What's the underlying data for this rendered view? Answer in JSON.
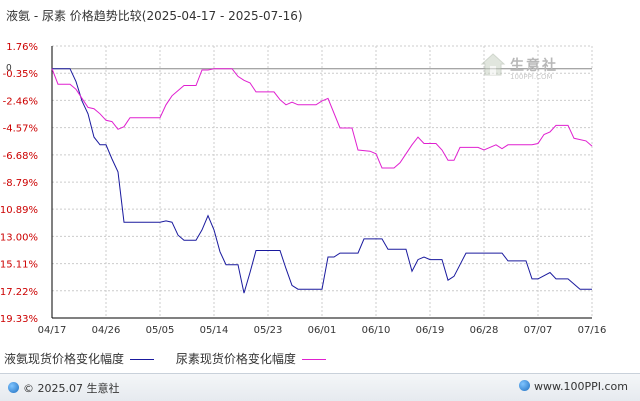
{
  "title": "液氨 - 尿素  价格趋势比较(2025-04-17 - 2025-07-16)",
  "watermark": {
    "name": "生意社",
    "url": "100PPI.COM"
  },
  "footer": {
    "copyright": "© 2025.07 生意社",
    "url": "www.100PPI.com"
  },
  "colors": {
    "series1": "#1a1a9e",
    "series2": "#e020d0",
    "axis": "#000000",
    "grid": "#cccccc",
    "ytick": "#cc0000"
  },
  "chart_data": {
    "type": "line",
    "title": "液氨 - 尿素  价格趋势比较(2025-04-17 - 2025-07-16)",
    "ylim": [
      -19.33,
      1.76
    ],
    "yticks": [
      "1.76%",
      "-0.35%",
      "-2.46%",
      "-4.57%",
      "-6.68%",
      "-8.79%",
      "-10.89%",
      "-13.00%",
      "-15.11%",
      "-17.22%",
      "-19.33%"
    ],
    "ytick_values": [
      1.76,
      -0.35,
      -2.46,
      -4.57,
      -6.68,
      -8.79,
      -10.89,
      -13.0,
      -15.11,
      -17.22,
      -19.33
    ],
    "zero_label": "0",
    "xlim": [
      0,
      90
    ],
    "xticks": [
      {
        "label": "04/17",
        "x": 0
      },
      {
        "label": "04/26",
        "x": 9
      },
      {
        "label": "05/05",
        "x": 18
      },
      {
        "label": "05/14",
        "x": 27
      },
      {
        "label": "05/23",
        "x": 36
      },
      {
        "label": "06/01",
        "x": 45
      },
      {
        "label": "06/10",
        "x": 54
      },
      {
        "label": "06/19",
        "x": 63
      },
      {
        "label": "06/28",
        "x": 72
      },
      {
        "label": "07/07",
        "x": 81
      },
      {
        "label": "07/16",
        "x": 90
      }
    ],
    "grid": true,
    "legend_position": "bottom",
    "series": [
      {
        "name": "液氨现货价格变化幅度",
        "points": [
          [
            0,
            0
          ],
          [
            3,
            0
          ],
          [
            4,
            -1
          ],
          [
            5,
            -2.5
          ],
          [
            6,
            -3.5
          ],
          [
            7,
            -5.3
          ],
          [
            8,
            -5.9
          ],
          [
            9,
            -5.9
          ],
          [
            10,
            -7
          ],
          [
            11,
            -8
          ],
          [
            12,
            -11.9
          ],
          [
            13,
            -11.9
          ],
          [
            18,
            -11.9
          ],
          [
            19,
            -11.8
          ],
          [
            20,
            -11.9
          ],
          [
            21,
            -12.9
          ],
          [
            22,
            -13.3
          ],
          [
            24,
            -13.3
          ],
          [
            25,
            -12.5
          ],
          [
            26,
            -11.4
          ],
          [
            27,
            -12.5
          ],
          [
            28,
            -14.2
          ],
          [
            29,
            -15.2
          ],
          [
            31,
            -15.2
          ],
          [
            32,
            -17.4
          ],
          [
            33,
            -15.8
          ],
          [
            34,
            -14.1
          ],
          [
            38,
            -14.1
          ],
          [
            39,
            -15.5
          ],
          [
            40,
            -16.8
          ],
          [
            41,
            -17.1
          ],
          [
            45,
            -17.1
          ],
          [
            46,
            -14.6
          ],
          [
            47,
            -14.6
          ],
          [
            48,
            -14.3
          ],
          [
            51,
            -14.3
          ],
          [
            52,
            -13.2
          ],
          [
            55,
            -13.2
          ],
          [
            56,
            -14
          ],
          [
            59,
            -14
          ],
          [
            60,
            -15.7
          ],
          [
            61,
            -14.8
          ],
          [
            62,
            -14.6
          ],
          [
            63,
            -14.8
          ],
          [
            65,
            -14.8
          ],
          [
            66,
            -16.4
          ],
          [
            67,
            -16.1
          ],
          [
            68,
            -15.2
          ],
          [
            69,
            -14.3
          ],
          [
            75,
            -14.3
          ],
          [
            76,
            -14.9
          ],
          [
            79,
            -14.9
          ],
          [
            80,
            -16.3
          ],
          [
            81,
            -16.3
          ],
          [
            83,
            -15.8
          ],
          [
            84,
            -16.3
          ],
          [
            86,
            -16.3
          ],
          [
            88,
            -17.1
          ],
          [
            90,
            -17.1
          ]
        ]
      },
      {
        "name": "尿素现货价格变化幅度",
        "points": [
          [
            0,
            0
          ],
          [
            1,
            -1.2
          ],
          [
            3,
            -1.2
          ],
          [
            4,
            -1.6
          ],
          [
            6,
            -3
          ],
          [
            7,
            -3.1
          ],
          [
            8,
            -3.5
          ],
          [
            9,
            -4
          ],
          [
            10,
            -4.1
          ],
          [
            11,
            -4.7
          ],
          [
            12,
            -4.5
          ],
          [
            13,
            -3.8
          ],
          [
            18,
            -3.8
          ],
          [
            19,
            -2.8
          ],
          [
            20,
            -2.1
          ],
          [
            21,
            -1.7
          ],
          [
            22,
            -1.3
          ],
          [
            24,
            -1.3
          ],
          [
            25,
            -0.1
          ],
          [
            26,
            -0.1
          ],
          [
            27,
            0
          ],
          [
            28,
            0
          ],
          [
            30,
            0
          ],
          [
            31,
            -0.6
          ],
          [
            32,
            -0.9
          ],
          [
            33,
            -1.1
          ],
          [
            34,
            -1.8
          ],
          [
            37,
            -1.8
          ],
          [
            38,
            -2.4
          ],
          [
            39,
            -2.8
          ],
          [
            40,
            -2.6
          ],
          [
            41,
            -2.8
          ],
          [
            44,
            -2.8
          ],
          [
            45,
            -2.5
          ],
          [
            46,
            -2.3
          ],
          [
            48,
            -4.6
          ],
          [
            50,
            -4.6
          ],
          [
            51,
            -6.3
          ],
          [
            53,
            -6.4
          ],
          [
            54,
            -6.6
          ],
          [
            55,
            -7.7
          ],
          [
            57,
            -7.7
          ],
          [
            58,
            -7.3
          ],
          [
            59,
            -6.6
          ],
          [
            60,
            -5.9
          ],
          [
            61,
            -5.3
          ],
          [
            62,
            -5.8
          ],
          [
            64,
            -5.8
          ],
          [
            65,
            -6.3
          ],
          [
            66,
            -7.1
          ],
          [
            67,
            -7.1
          ],
          [
            68,
            -6.1
          ],
          [
            71,
            -6.1
          ],
          [
            72,
            -6.3
          ],
          [
            74,
            -5.9
          ],
          [
            75,
            -6.2
          ],
          [
            76,
            -5.9
          ],
          [
            80,
            -5.9
          ],
          [
            81,
            -5.8
          ],
          [
            82,
            -5.1
          ],
          [
            83,
            -4.9
          ],
          [
            84,
            -4.4
          ],
          [
            86,
            -4.4
          ],
          [
            87,
            -5.4
          ],
          [
            89,
            -5.6
          ],
          [
            90,
            -6
          ]
        ]
      }
    ]
  }
}
